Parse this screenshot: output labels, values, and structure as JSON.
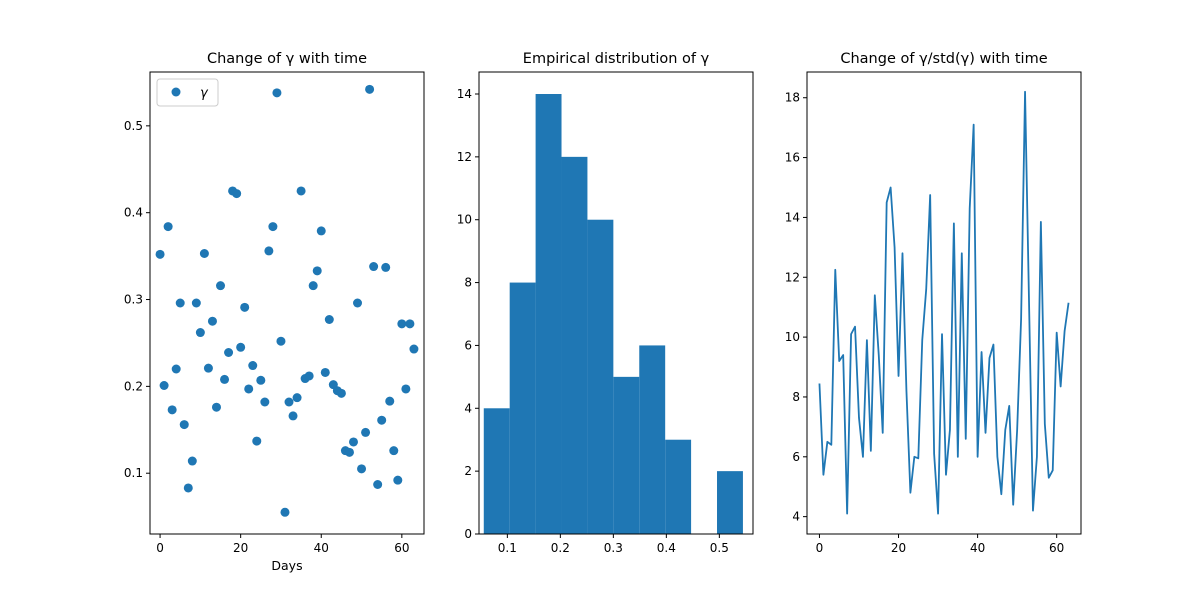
{
  "chart_data": [
    {
      "type": "scatter",
      "title": "Change of γ with time",
      "xlabel": "Days",
      "ylabel": "",
      "xlim": [
        -2.5,
        65.5
      ],
      "ylim": [
        0.03,
        0.562
      ],
      "xticks": [
        0,
        20,
        40,
        60
      ],
      "yticks": [
        0.1,
        0.2,
        0.3,
        0.4,
        0.5
      ],
      "grid": false,
      "legend": {
        "placement": "top-left",
        "entries": [
          "γ"
        ]
      },
      "series": [
        {
          "name": "γ",
          "color": "#1f77b4",
          "x": [
            0,
            1,
            2,
            3,
            4,
            5,
            6,
            7,
            8,
            9,
            10,
            11,
            12,
            13,
            14,
            15,
            16,
            17,
            18,
            19,
            20,
            21,
            22,
            23,
            24,
            25,
            26,
            27,
            28,
            29,
            30,
            31,
            32,
            33,
            34,
            35,
            36,
            37,
            38,
            39,
            40,
            41,
            42,
            43,
            44,
            45,
            46,
            47,
            48,
            49,
            50,
            51,
            52,
            53,
            54,
            55,
            56,
            57,
            58,
            59,
            60,
            61,
            62,
            63
          ],
          "y": [
            0.352,
            0.201,
            0.384,
            0.173,
            0.22,
            0.296,
            0.156,
            0.083,
            0.114,
            0.296,
            0.262,
            0.353,
            0.221,
            0.275,
            0.176,
            0.316,
            0.208,
            0.239,
            0.425,
            0.422,
            0.245,
            0.291,
            0.197,
            0.224,
            0.137,
            0.207,
            0.182,
            0.356,
            0.384,
            0.538,
            0.252,
            0.055,
            0.182,
            0.166,
            0.187,
            0.425,
            0.209,
            0.212,
            0.316,
            0.333,
            0.379,
            0.216,
            0.277,
            0.202,
            0.195,
            0.192,
            0.126,
            0.124,
            0.136,
            0.296,
            0.105,
            0.147,
            0.542,
            0.338,
            0.087,
            0.161,
            0.337,
            0.183,
            0.126,
            0.092,
            0.272,
            0.197,
            0.272,
            0.243
          ]
        }
      ]
    },
    {
      "type": "bar",
      "title": "Empirical distribution of γ",
      "xlabel": "",
      "ylabel": "",
      "xlim": [
        0.0465,
        0.5635
      ],
      "ylim": [
        0,
        14.7
      ],
      "xticks": [
        0.1,
        0.2,
        0.3,
        0.4,
        0.5
      ],
      "yticks": [
        0,
        2,
        4,
        6,
        8,
        10,
        12,
        14
      ],
      "grid": false,
      "bin_edges": [
        0.0555,
        0.1044,
        0.1533,
        0.2022,
        0.2511,
        0.3,
        0.3489,
        0.3978,
        0.4467,
        0.4956,
        0.5445
      ],
      "values": [
        4,
        8,
        14,
        12,
        10,
        5,
        6,
        3,
        0,
        2
      ],
      "color": "#1f77b4"
    },
    {
      "type": "line",
      "title": "Change of γ/std(γ) with time",
      "xlabel": "",
      "ylabel": "",
      "xlim": [
        -3.15,
        66.15
      ],
      "ylim": [
        3.42,
        18.86
      ],
      "xticks": [
        0,
        20,
        40,
        60
      ],
      "yticks": [
        4,
        6,
        8,
        10,
        12,
        14,
        16,
        18
      ],
      "grid": false,
      "series": [
        {
          "name": "",
          "color": "#1f77b4",
          "x": [
            0,
            1,
            2,
            3,
            4,
            5,
            6,
            7,
            8,
            9,
            10,
            11,
            12,
            13,
            14,
            15,
            16,
            17,
            18,
            19,
            20,
            21,
            22,
            23,
            24,
            25,
            26,
            27,
            28,
            29,
            30,
            31,
            32,
            33,
            34,
            35,
            36,
            37,
            38,
            39,
            40,
            41,
            42,
            43,
            44,
            45,
            46,
            47,
            48,
            49,
            50,
            51,
            52,
            53,
            54,
            55,
            56,
            57,
            58,
            59,
            60,
            61,
            62,
            63
          ],
          "y": [
            8.45,
            5.4,
            6.5,
            6.4,
            12.25,
            9.2,
            9.4,
            4.1,
            10.1,
            10.35,
            7.3,
            6.0,
            9.9,
            6.2,
            11.4,
            9.4,
            6.8,
            14.5,
            15.0,
            13.0,
            8.7,
            12.8,
            8.2,
            4.8,
            6.0,
            5.95,
            9.9,
            11.6,
            14.75,
            6.1,
            4.1,
            10.1,
            5.4,
            6.9,
            13.8,
            6.0,
            12.8,
            6.6,
            14.3,
            17.1,
            6.0,
            9.5,
            6.8,
            9.3,
            9.75,
            6.0,
            4.75,
            6.9,
            7.7,
            4.4,
            6.9,
            10.6,
            18.2,
            11.2,
            4.2,
            6.0,
            13.85,
            7.1,
            5.3,
            5.55,
            10.15,
            8.35,
            10.2,
            11.15
          ]
        }
      ]
    }
  ]
}
